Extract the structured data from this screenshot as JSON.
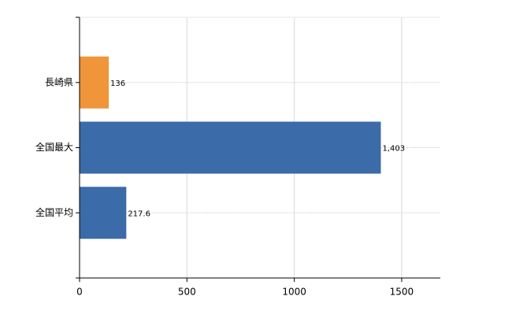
{
  "chart_data": {
    "type": "bar",
    "orientation": "horizontal",
    "categories": [
      "長崎県",
      "全国最大",
      "全国平均"
    ],
    "values": [
      136,
      1403,
      217.6
    ],
    "value_labels": [
      "136",
      "1,403",
      "217.6"
    ],
    "colors": [
      "#f0953a",
      "#3b6ba8",
      "#3b6ba8"
    ],
    "xlim": [
      0,
      1680
    ],
    "xticks": [
      0,
      500,
      1000,
      1500
    ],
    "grid": true
  }
}
